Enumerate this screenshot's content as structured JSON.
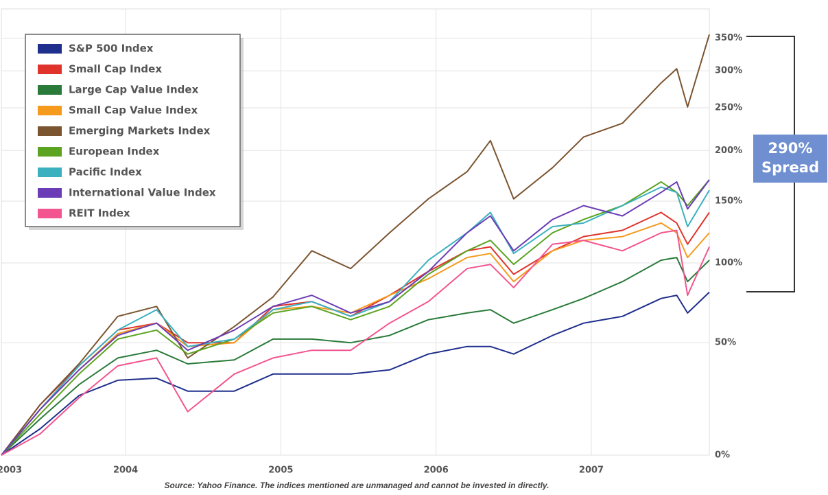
{
  "chart_data": {
    "type": "line",
    "x": [
      2003.2,
      2003.45,
      2003.7,
      2003.95,
      2004.2,
      2004.4,
      2004.7,
      2004.95,
      2005.2,
      2005.45,
      2005.7,
      2005.95,
      2006.2,
      2006.35,
      2006.5,
      2006.75,
      2006.95,
      2007.2,
      2007.45,
      2007.55,
      2007.62,
      2007.76
    ],
    "xlim": [
      2003.2,
      2007.76
    ],
    "xticks": [
      2003,
      2004,
      2005,
      2006,
      2007
    ],
    "ylim": [
      0,
      400
    ],
    "yticks": [
      {
        "value": 0,
        "label": "0%"
      },
      {
        "value": 50,
        "label": "50%"
      },
      {
        "value": 100,
        "label": "100%"
      },
      {
        "value": 150,
        "label": "150%"
      },
      {
        "value": 200,
        "label": "200%"
      },
      {
        "value": 250,
        "label": "250%"
      },
      {
        "value": 300,
        "label": "300%"
      },
      {
        "value": 350,
        "label": "350%"
      }
    ],
    "log_scale": true,
    "grid": true,
    "legend": "top-left",
    "series": [
      {
        "name": "S&P 500 Index",
        "color": "#1f2f8c",
        "values": [
          0,
          10,
          24,
          31,
          32,
          26,
          26,
          34,
          34,
          34,
          36,
          44,
          48,
          48,
          44,
          54,
          61,
          65,
          76,
          78,
          67,
          80
        ]
      },
      {
        "name": "Small Cap Index",
        "color": "#e0332b",
        "values": [
          0,
          20,
          38,
          57,
          61,
          50,
          50,
          71,
          74,
          65,
          78,
          94,
          109,
          112,
          92,
          109,
          120,
          125,
          140,
          131,
          114,
          140
        ]
      },
      {
        "name": "Large Cap Value Index",
        "color": "#2a7b3a",
        "values": [
          0,
          14,
          29,
          42,
          46,
          39,
          41,
          52,
          52,
          50,
          54,
          63,
          67,
          69,
          61,
          69,
          76,
          87,
          102,
          104,
          87,
          102
        ]
      },
      {
        "name": "Small Cap Value Index",
        "color": "#f59a1d",
        "values": [
          0,
          18,
          36,
          55,
          61,
          48,
          50,
          69,
          71,
          67,
          78,
          89,
          104,
          107,
          87,
          109,
          117,
          120,
          131,
          123,
          104,
          123
        ]
      },
      {
        "name": "Emerging Markets Index",
        "color": "#7b5430",
        "values": [
          0,
          20,
          39,
          65,
          71,
          42,
          59,
          77,
          109,
          96,
          123,
          152,
          178,
          211,
          152,
          182,
          215,
          231,
          283,
          303,
          251,
          356
        ]
      },
      {
        "name": "European Index",
        "color": "#5ba321",
        "values": [
          0,
          16,
          34,
          52,
          57,
          44,
          52,
          67,
          71,
          63,
          71,
          92,
          109,
          117,
          99,
          123,
          134,
          146,
          168,
          158,
          146,
          170
        ]
      },
      {
        "name": "Pacific Index",
        "color": "#3bb0bf",
        "values": [
          0,
          18,
          38,
          57,
          69,
          48,
          52,
          69,
          74,
          65,
          74,
          102,
          123,
          140,
          107,
          128,
          131,
          146,
          163,
          158,
          128,
          160
        ]
      },
      {
        "name": "International Value Index",
        "color": "#6b3cb5",
        "values": [
          0,
          18,
          36,
          54,
          61,
          46,
          57,
          71,
          78,
          67,
          74,
          94,
          123,
          137,
          109,
          134,
          146,
          137,
          158,
          168,
          143,
          170
        ]
      },
      {
        "name": "REIT Index",
        "color": "#f2558f",
        "values": [
          0,
          8,
          23,
          38,
          42,
          17,
          34,
          42,
          46,
          46,
          61,
          74,
          96,
          99,
          83,
          114,
          117,
          109,
          123,
          125,
          78,
          112
        ]
      }
    ],
    "annotations": [
      "290%",
      "Spread"
    ],
    "source": "Source: Yahoo Finance. The indices mentioned are unmanaged and cannot be invested in directly."
  }
}
